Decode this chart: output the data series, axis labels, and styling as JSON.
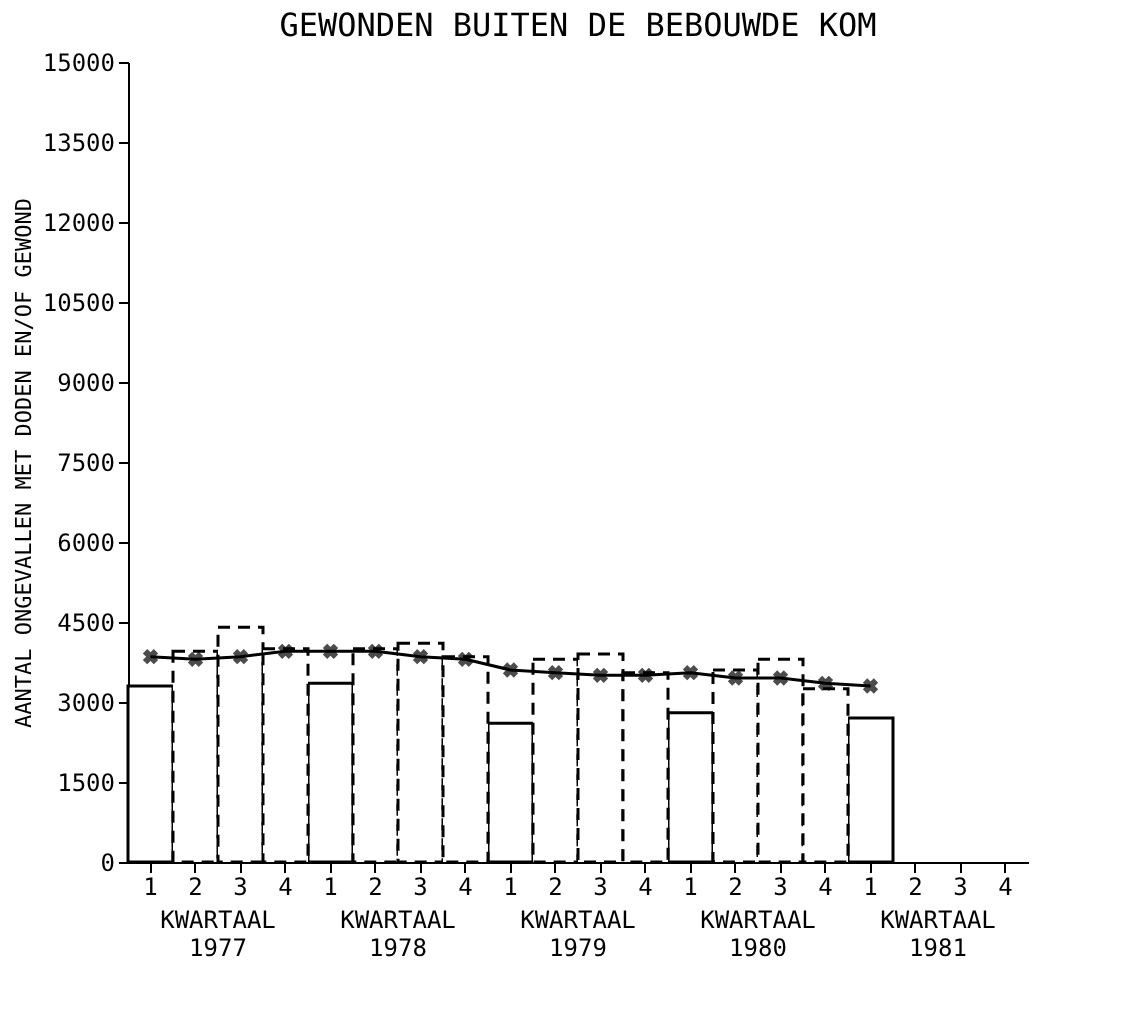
{
  "chart_data": {
    "type": "bar",
    "title": "GEWONDEN BUITEN DE BEBOUWDE KOM",
    "ylabel": "AANTAL ONGEVALLEN MET DODEN EN/OF GEWOND",
    "categories": [
      "1",
      "2",
      "3",
      "4",
      "1",
      "2",
      "3",
      "4",
      "1",
      "2",
      "3",
      "4",
      "1",
      "2",
      "3",
      "4",
      "1",
      "2",
      "3",
      "4"
    ],
    "series": [
      {
        "color": "#000000",
        "line_style": "solid",
        "values": [
          3300,
          null,
          null,
          null,
          3350,
          null,
          null,
          null,
          2600,
          null,
          null,
          null,
          2800,
          null,
          null,
          null,
          2700,
          null,
          null,
          null
        ]
      },
      {
        "color": "#000000",
        "line_style": "dashed",
        "values": [
          null,
          3950,
          4400,
          4000,
          null,
          4000,
          4100,
          3850,
          null,
          3800,
          3900,
          3550,
          null,
          3600,
          3800,
          3250,
          null,
          null,
          null,
          null
        ]
      },
      {
        "type": "line",
        "color": "#000000",
        "marker": "cross",
        "line_style": "solid",
        "values": [
          3850,
          3800,
          3850,
          3950,
          3950,
          3950,
          3850,
          3800,
          3600,
          3550,
          3500,
          3500,
          3550,
          3450,
          3450,
          3350,
          3300,
          null,
          null,
          null
        ]
      }
    ],
    "ylim": [
      0,
      15000
    ],
    "yticks": [
      0,
      1500,
      3000,
      4500,
      6000,
      7500,
      9000,
      10500,
      12000,
      13500,
      15000
    ],
    "grid": false,
    "annotations": [
      "KWARTAAL 1977",
      "KWARTAAL 1978",
      "KWARTAAL 1979",
      "KWARTAAL 1980",
      "KWARTAAL 1981"
    ]
  }
}
